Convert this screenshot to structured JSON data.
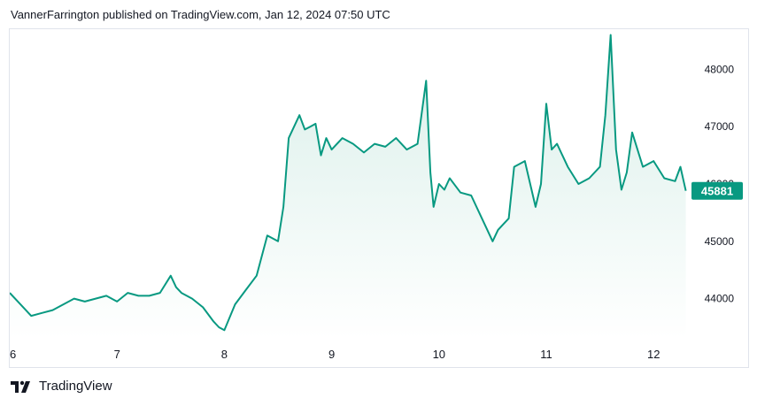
{
  "header": {
    "published_by": "VannerFarrington published on TradingView.com, Jan 12, 2024 07:50 UTC"
  },
  "footer": {
    "brand": "TradingView",
    "logo_icon": "tradingview-logo-icon"
  },
  "colors": {
    "line": "#089981",
    "area_top": "#d9efe9",
    "area_bottom": "#ffffff",
    "label_bg": "#089981",
    "label_text": "#ffffff",
    "axis_text": "#131722",
    "grid": "#f0f3fa"
  },
  "chart_data": {
    "type": "area",
    "x_ticks": [
      "6",
      "7",
      "8",
      "9",
      "10",
      "11",
      "12"
    ],
    "y_ticks": [
      "44000",
      "45000",
      "46000",
      "47000",
      "48000"
    ],
    "ylim": [
      43300,
      48700
    ],
    "xlim": [
      6,
      12.32
    ],
    "last_price_label": "45881",
    "last_price": 45881,
    "x": [
      6.0,
      6.1,
      6.2,
      6.3,
      6.4,
      6.5,
      6.6,
      6.7,
      6.8,
      6.9,
      7.0,
      7.1,
      7.2,
      7.3,
      7.4,
      7.5,
      7.55,
      7.6,
      7.7,
      7.8,
      7.9,
      7.95,
      8.0,
      8.1,
      8.2,
      8.3,
      8.4,
      8.5,
      8.55,
      8.6,
      8.7,
      8.75,
      8.8,
      8.85,
      8.9,
      8.95,
      9.0,
      9.1,
      9.2,
      9.3,
      9.4,
      9.5,
      9.6,
      9.7,
      9.8,
      9.88,
      9.92,
      9.95,
      10.0,
      10.05,
      10.1,
      10.2,
      10.3,
      10.4,
      10.5,
      10.55,
      10.6,
      10.65,
      10.7,
      10.8,
      10.9,
      10.95,
      11.0,
      11.05,
      11.1,
      11.15,
      11.2,
      11.3,
      11.4,
      11.5,
      11.55,
      11.6,
      11.65,
      11.7,
      11.75,
      11.8,
      11.9,
      12.0,
      12.1,
      12.2,
      12.25,
      12.3
    ],
    "y": [
      44100,
      43900,
      43700,
      43750,
      43800,
      43900,
      44000,
      43950,
      44000,
      44050,
      43950,
      44100,
      44050,
      44050,
      44100,
      44400,
      44200,
      44100,
      44000,
      43850,
      43600,
      43500,
      43450,
      43900,
      44150,
      44400,
      45100,
      45000,
      45600,
      46800,
      47200,
      46950,
      47000,
      47050,
      46500,
      46800,
      46600,
      46800,
      46700,
      46550,
      46700,
      46650,
      46800,
      46600,
      46700,
      47800,
      46200,
      45600,
      46000,
      45900,
      46100,
      45850,
      45800,
      45400,
      45000,
      45200,
      45300,
      45400,
      46300,
      46400,
      45600,
      46000,
      47400,
      46600,
      46700,
      46500,
      46300,
      46000,
      46100,
      46300,
      47200,
      48600,
      46600,
      45900,
      46200,
      46900,
      46300,
      46400,
      46100,
      46050,
      46300,
      45881
    ]
  }
}
